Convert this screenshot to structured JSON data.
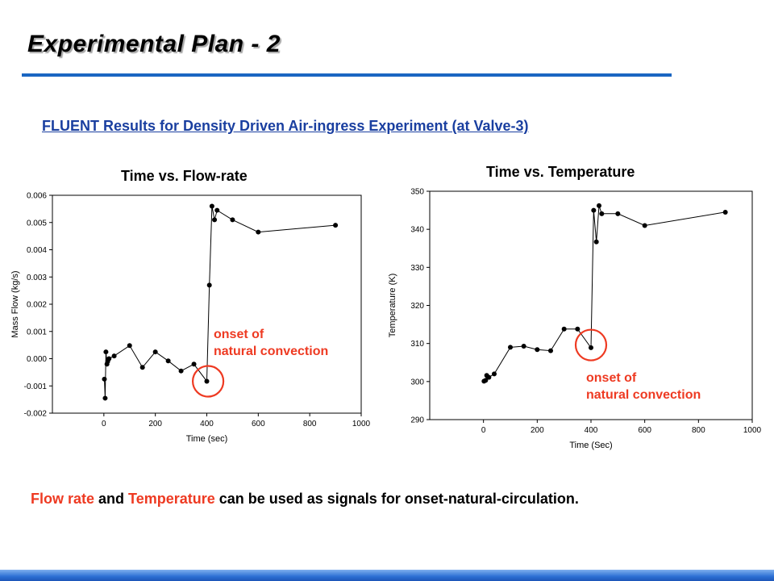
{
  "slide": {
    "title": "Experimental Plan - 2",
    "subtitle": "FLUENT Results for Density Driven Air-ingress Experiment (at Valve-3)",
    "footer": {
      "red1": "Flow rate",
      "t1": " and ",
      "red2": "Temperature",
      "t2": " can be used as signals for onset-natural-circulation."
    },
    "colors": {
      "title_rule": "#1a66c2",
      "subtitle": "#1a3fa0",
      "annotation": "#ee3a22",
      "bottom_bar": "#2c6fd4"
    }
  },
  "chart_data": [
    {
      "type": "scatter",
      "title": "Time vs. Flow-rate",
      "xlabel": "Time (sec)",
      "ylabel": "Mass Flow (kg/s)",
      "xlim": [
        -200,
        1000
      ],
      "ylim": [
        -0.002,
        0.006
      ],
      "xticks": [
        0,
        200,
        400,
        600,
        800,
        1000
      ],
      "yticks": [
        -0.002,
        -0.001,
        0.0,
        0.001,
        0.002,
        0.003,
        0.004,
        0.005,
        0.006
      ],
      "ytick_labels": [
        "-0.002",
        "-0.001",
        "0.000",
        "0.001",
        "0.002",
        "0.003",
        "0.004",
        "0.005",
        "0.006"
      ],
      "grid": false,
      "legend": "none",
      "series": [
        {
          "x": [
            2,
            5,
            8,
            12,
            15,
            20,
            40,
            100,
            150,
            200,
            250,
            300,
            350,
            400,
            410,
            420,
            430,
            440,
            500,
            600,
            900
          ],
          "y": [
            -0.00075,
            -0.00145,
            0.00025,
            -0.0002,
            -0.0001,
            0.0,
            0.0001,
            0.00048,
            -0.00032,
            0.00025,
            -8e-05,
            -0.00045,
            -0.0002,
            -0.00083,
            0.0027,
            0.0056,
            0.0051,
            0.00545,
            0.0051,
            0.00465,
            0.0049
          ]
        }
      ],
      "annotation": {
        "line1": "onset of",
        "line2": "natural convection",
        "circle_at": [
          405,
          -0.00083
        ]
      }
    },
    {
      "type": "scatter",
      "title": "Time vs. Temperature",
      "xlabel": "Time (Sec)",
      "ylabel": "Temperature (K)",
      "xlim": [
        -200,
        1000
      ],
      "ylim": [
        290,
        350
      ],
      "xticks": [
        0,
        200,
        400,
        600,
        800,
        1000
      ],
      "yticks": [
        290,
        300,
        310,
        320,
        330,
        340,
        350
      ],
      "ytick_labels": [
        "290",
        "300",
        "310",
        "320",
        "330",
        "340",
        "350"
      ],
      "grid": false,
      "legend": "none",
      "series": [
        {
          "x": [
            2,
            8,
            12,
            20,
            40,
            100,
            150,
            200,
            250,
            300,
            350,
            400,
            410,
            420,
            430,
            440,
            500,
            600,
            900
          ],
          "y": [
            300.1,
            300.3,
            301.6,
            301.1,
            302.0,
            309.0,
            309.3,
            308.4,
            308.1,
            313.8,
            313.8,
            308.9,
            345.0,
            336.7,
            346.2,
            344.1,
            344.1,
            341.0,
            344.5
          ]
        }
      ],
      "annotation": {
        "line1": "onset of",
        "line2": "natural convection",
        "circle_at": [
          400,
          309.6
        ]
      }
    }
  ]
}
